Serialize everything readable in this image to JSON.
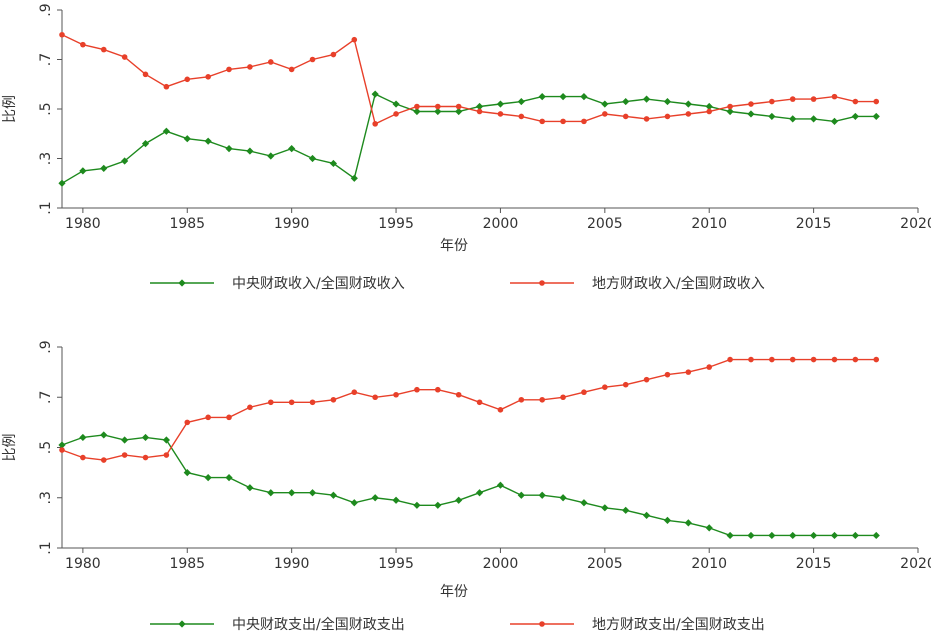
{
  "colors": {
    "green": "#1e8a1e",
    "red": "#e8402a",
    "axis": "#555555"
  },
  "chart_data": [
    {
      "type": "line",
      "xlabel": "年份",
      "ylabel": "比例",
      "xlim": [
        1979,
        2020
      ],
      "ylim": [
        0.1,
        0.9
      ],
      "xticks": [
        1980,
        1985,
        1990,
        1995,
        2000,
        2005,
        2010,
        2015,
        2020
      ],
      "yticks": [
        0.1,
        0.3,
        0.5,
        0.7,
        0.9
      ],
      "grid": false,
      "legend_position": "bottom",
      "x": [
        1979,
        1980,
        1981,
        1982,
        1983,
        1984,
        1985,
        1986,
        1987,
        1988,
        1989,
        1990,
        1991,
        1992,
        1993,
        1994,
        1995,
        1996,
        1997,
        1998,
        1999,
        2000,
        2001,
        2002,
        2003,
        2004,
        2005,
        2006,
        2007,
        2008,
        2009,
        2010,
        2011,
        2012,
        2013,
        2014,
        2015,
        2016,
        2017,
        2018
      ],
      "series": [
        {
          "name": "中央财政收入/全国财政收入",
          "color": "green",
          "marker": "diamond",
          "values": [
            0.2,
            0.25,
            0.26,
            0.29,
            0.36,
            0.41,
            0.38,
            0.37,
            0.34,
            0.33,
            0.31,
            0.34,
            0.3,
            0.28,
            0.22,
            0.56,
            0.52,
            0.49,
            0.49,
            0.49,
            0.51,
            0.52,
            0.53,
            0.55,
            0.55,
            0.55,
            0.52,
            0.53,
            0.54,
            0.53,
            0.52,
            0.51,
            0.49,
            0.48,
            0.47,
            0.46,
            0.46,
            0.45,
            0.47,
            0.47
          ]
        },
        {
          "name": "地方财政收入/全国财政收入",
          "color": "red",
          "marker": "circle",
          "values": [
            0.8,
            0.76,
            0.74,
            0.71,
            0.64,
            0.59,
            0.62,
            0.63,
            0.66,
            0.67,
            0.69,
            0.66,
            0.7,
            0.72,
            0.78,
            0.44,
            0.48,
            0.51,
            0.51,
            0.51,
            0.49,
            0.48,
            0.47,
            0.45,
            0.45,
            0.45,
            0.48,
            0.47,
            0.46,
            0.47,
            0.48,
            0.49,
            0.51,
            0.52,
            0.53,
            0.54,
            0.54,
            0.55,
            0.53,
            0.53
          ]
        }
      ]
    },
    {
      "type": "line",
      "xlabel": "年份",
      "ylabel": "比例",
      "xlim": [
        1979,
        2020
      ],
      "ylim": [
        0.1,
        0.9
      ],
      "xticks": [
        1980,
        1985,
        1990,
        1995,
        2000,
        2005,
        2010,
        2015,
        2020
      ],
      "yticks": [
        0.1,
        0.3,
        0.5,
        0.7,
        0.9
      ],
      "grid": false,
      "legend_position": "bottom",
      "x": [
        1979,
        1980,
        1981,
        1982,
        1983,
        1984,
        1985,
        1986,
        1987,
        1988,
        1989,
        1990,
        1991,
        1992,
        1993,
        1994,
        1995,
        1996,
        1997,
        1998,
        1999,
        2000,
        2001,
        2002,
        2003,
        2004,
        2005,
        2006,
        2007,
        2008,
        2009,
        2010,
        2011,
        2012,
        2013,
        2014,
        2015,
        2016,
        2017,
        2018
      ],
      "series": [
        {
          "name": "中央财政支出/全国财政支出",
          "color": "green",
          "marker": "diamond",
          "values": [
            0.51,
            0.54,
            0.55,
            0.53,
            0.54,
            0.53,
            0.4,
            0.38,
            0.38,
            0.34,
            0.32,
            0.32,
            0.32,
            0.31,
            0.28,
            0.3,
            0.29,
            0.27,
            0.27,
            0.29,
            0.32,
            0.35,
            0.31,
            0.31,
            0.3,
            0.28,
            0.26,
            0.25,
            0.23,
            0.21,
            0.2,
            0.18,
            0.15,
            0.15,
            0.15,
            0.15,
            0.15,
            0.15,
            0.15,
            0.15
          ]
        },
        {
          "name": "地方财政支出/全国财政支出",
          "color": "red",
          "marker": "circle",
          "values": [
            0.49,
            0.46,
            0.45,
            0.47,
            0.46,
            0.47,
            0.6,
            0.62,
            0.62,
            0.66,
            0.68,
            0.68,
            0.68,
            0.69,
            0.72,
            0.7,
            0.71,
            0.73,
            0.73,
            0.71,
            0.68,
            0.65,
            0.69,
            0.69,
            0.7,
            0.72,
            0.74,
            0.75,
            0.77,
            0.79,
            0.8,
            0.82,
            0.85,
            0.85,
            0.85,
            0.85,
            0.85,
            0.85,
            0.85,
            0.85
          ]
        }
      ]
    }
  ]
}
